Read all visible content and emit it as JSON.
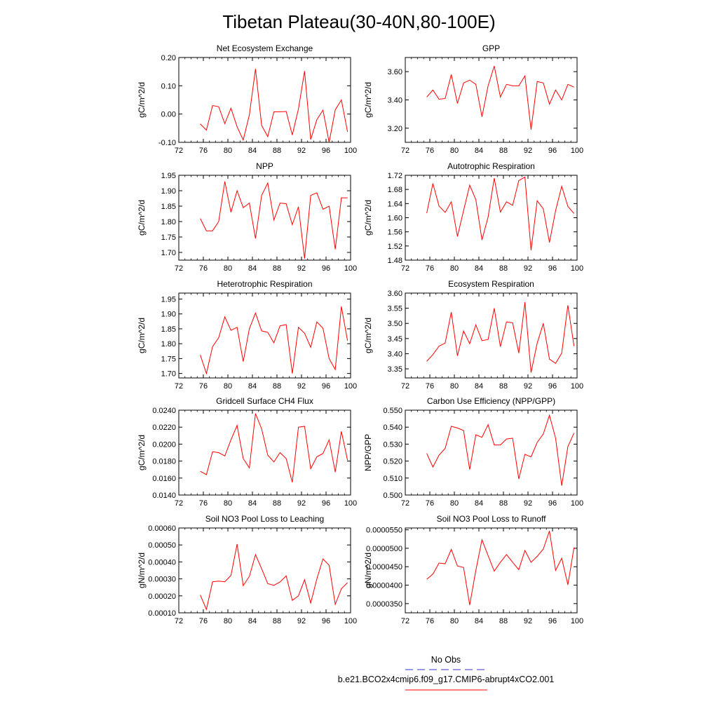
{
  "figure": {
    "title": "Tibetan Plateau(30-40N,80-100E)"
  },
  "legend": {
    "items": [
      {
        "label": "No Obs",
        "color": "#3333cc",
        "style": "dashed"
      },
      {
        "label": "b.e21.BCO2x4cmip6.f09_g17.CMIP6-abrupt4xCO2.001",
        "color": "#ff0000",
        "style": "solid"
      }
    ]
  },
  "colors": {
    "series": "#ff0000",
    "frame": "#000000"
  },
  "chart_data": [
    {
      "type": "line",
      "title": "Net Ecosystem Exchange",
      "ylabel": "gC/m^2/d",
      "xlim": [
        72,
        100
      ],
      "ylim": [
        -0.1,
        0.2
      ],
      "xticks": [
        72,
        76,
        80,
        84,
        88,
        92,
        96,
        100
      ],
      "xtick_labels": [
        "72",
        "76",
        "80",
        "84",
        "88",
        "92",
        "96",
        "100"
      ],
      "yticks": [
        -0.1,
        0.0,
        0.1,
        0.2
      ],
      "ytick_labels": [
        "-0.10",
        "0.00",
        "0.10",
        "0.20"
      ],
      "x": [
        75.5,
        76.5,
        77.5,
        78.5,
        79.5,
        80.5,
        81.5,
        82.5,
        83.5,
        84.5,
        85.5,
        86.5,
        87.5,
        88.5,
        89.5,
        90.5,
        91.5,
        92.5,
        93.5,
        94.5,
        95.5,
        96.5,
        97.5,
        98.5,
        99.5
      ],
      "series": [
        {
          "values": [
            -0.035,
            -0.057,
            0.03,
            0.026,
            -0.034,
            0.021,
            -0.045,
            -0.092,
            -0.003,
            0.16,
            -0.04,
            -0.08,
            0.008,
            0.008,
            0.009,
            -0.074,
            0.018,
            0.152,
            -0.09,
            -0.02,
            0.014,
            -0.1,
            0.015,
            0.05,
            -0.063
          ]
        }
      ]
    },
    {
      "type": "line",
      "title": "GPP",
      "ylabel": "gC/m^2/d",
      "xlim": [
        72,
        100
      ],
      "ylim": [
        3.1,
        3.7
      ],
      "xticks": [
        72,
        76,
        80,
        84,
        88,
        92,
        96,
        100
      ],
      "xtick_labels": [
        "72",
        "76",
        "80",
        "84",
        "88",
        "92",
        "96",
        "100"
      ],
      "yticks": [
        3.2,
        3.4,
        3.6
      ],
      "ytick_labels": [
        "3.20",
        "3.40",
        "3.60"
      ],
      "x": [
        75.5,
        76.5,
        77.5,
        78.5,
        79.5,
        80.5,
        81.5,
        82.5,
        83.5,
        84.5,
        85.5,
        86.5,
        87.5,
        88.5,
        89.5,
        90.5,
        91.5,
        92.5,
        93.5,
        94.5,
        95.5,
        96.5,
        97.5,
        98.5,
        99.5
      ],
      "series": [
        {
          "values": [
            3.42,
            3.47,
            3.405,
            3.41,
            3.58,
            3.375,
            3.52,
            3.54,
            3.51,
            3.28,
            3.5,
            3.64,
            3.42,
            3.51,
            3.5,
            3.5,
            3.57,
            3.19,
            3.53,
            3.52,
            3.37,
            3.47,
            3.4,
            3.51,
            3.49
          ]
        }
      ]
    },
    {
      "type": "line",
      "title": "NPP",
      "ylabel": "gC/m^2/d",
      "xlim": [
        72,
        100
      ],
      "ylim": [
        1.675,
        1.95
      ],
      "xticks": [
        72,
        76,
        80,
        84,
        88,
        92,
        96,
        100
      ],
      "xtick_labels": [
        "72",
        "76",
        "80",
        "84",
        "88",
        "92",
        "96",
        "100"
      ],
      "yticks": [
        1.7,
        1.75,
        1.8,
        1.85,
        1.9,
        1.95
      ],
      "ytick_labels": [
        "1.70",
        "1.75",
        "1.80",
        "1.85",
        "1.90",
        "1.95"
      ],
      "x": [
        75.5,
        76.5,
        77.5,
        78.5,
        79.5,
        80.5,
        81.5,
        82.5,
        83.5,
        84.5,
        85.5,
        86.5,
        87.5,
        88.5,
        89.5,
        90.5,
        91.5,
        92.5,
        93.5,
        94.5,
        95.5,
        96.5,
        97.5,
        98.5,
        99.5
      ],
      "series": [
        {
          "values": [
            1.81,
            1.77,
            1.77,
            1.8,
            1.93,
            1.83,
            1.9,
            1.845,
            1.86,
            1.745,
            1.885,
            1.925,
            1.805,
            1.86,
            1.858,
            1.79,
            1.848,
            1.68,
            1.885,
            1.893,
            1.84,
            1.85,
            1.71,
            1.877,
            1.877
          ]
        }
      ]
    },
    {
      "type": "line",
      "title": "Autotrophic Respiration",
      "ylabel": "gC/m^2/d",
      "xlim": [
        72,
        100
      ],
      "ylim": [
        1.48,
        1.72
      ],
      "xticks": [
        72,
        76,
        80,
        84,
        88,
        92,
        96,
        100
      ],
      "xtick_labels": [
        "72",
        "76",
        "80",
        "84",
        "88",
        "92",
        "96",
        "100"
      ],
      "yticks": [
        1.48,
        1.52,
        1.56,
        1.6,
        1.64,
        1.68,
        1.72
      ],
      "ytick_labels": [
        "1.48",
        "1.52",
        "1.56",
        "1.60",
        "1.64",
        "1.68",
        "1.72"
      ],
      "x": [
        75.5,
        76.5,
        77.5,
        78.5,
        79.5,
        80.5,
        81.5,
        82.5,
        83.5,
        84.5,
        85.5,
        86.5,
        87.5,
        88.5,
        89.5,
        90.5,
        91.5,
        92.5,
        93.5,
        94.5,
        95.5,
        96.5,
        97.5,
        98.5,
        99.5
      ],
      "series": [
        {
          "values": [
            1.613,
            1.697,
            1.633,
            1.615,
            1.645,
            1.547,
            1.62,
            1.692,
            1.651,
            1.537,
            1.602,
            1.712,
            1.616,
            1.645,
            1.635,
            1.705,
            1.715,
            1.508,
            1.648,
            1.625,
            1.53,
            1.62,
            1.689,
            1.632,
            1.612
          ]
        }
      ]
    },
    {
      "type": "line",
      "title": "Heterotrophic Respiration",
      "ylabel": "gC/m^2/d",
      "xlim": [
        72,
        100
      ],
      "ylim": [
        1.685,
        1.97
      ],
      "xticks": [
        72,
        76,
        80,
        84,
        88,
        92,
        96,
        100
      ],
      "xtick_labels": [
        "72",
        "76",
        "80",
        "84",
        "88",
        "92",
        "96",
        "100"
      ],
      "yticks": [
        1.7,
        1.75,
        1.8,
        1.85,
        1.9,
        1.95
      ],
      "ytick_labels": [
        "1.70",
        "1.75",
        "1.80",
        "1.85",
        "1.90",
        "1.95"
      ],
      "x": [
        75.5,
        76.5,
        77.5,
        78.5,
        79.5,
        80.5,
        81.5,
        82.5,
        83.5,
        84.5,
        85.5,
        86.5,
        87.5,
        88.5,
        89.5,
        90.5,
        91.5,
        92.5,
        93.5,
        94.5,
        95.5,
        96.5,
        97.5,
        98.5,
        99.5
      ],
      "series": [
        {
          "values": [
            1.762,
            1.7,
            1.79,
            1.82,
            1.89,
            1.845,
            1.855,
            1.74,
            1.85,
            1.903,
            1.843,
            1.838,
            1.803,
            1.86,
            1.864,
            1.7,
            1.855,
            1.835,
            1.788,
            1.873,
            1.852,
            1.75,
            1.713,
            1.925,
            1.81
          ]
        }
      ]
    },
    {
      "type": "line",
      "title": "Ecosystem Respiration",
      "ylabel": "gC/m^2/d",
      "xlim": [
        72,
        100
      ],
      "ylim": [
        3.32,
        3.6
      ],
      "xticks": [
        72,
        76,
        80,
        84,
        88,
        92,
        96,
        100
      ],
      "xtick_labels": [
        "72",
        "76",
        "80",
        "84",
        "88",
        "92",
        "96",
        "100"
      ],
      "yticks": [
        3.35,
        3.4,
        3.45,
        3.5,
        3.55,
        3.6
      ],
      "ytick_labels": [
        "3.35",
        "3.40",
        "3.45",
        "3.50",
        "3.55",
        "3.60"
      ],
      "x": [
        75.5,
        76.5,
        77.5,
        78.5,
        79.5,
        80.5,
        81.5,
        82.5,
        83.5,
        84.5,
        85.5,
        86.5,
        87.5,
        88.5,
        89.5,
        90.5,
        91.5,
        92.5,
        93.5,
        94.5,
        95.5,
        96.5,
        97.5,
        98.5,
        99.5
      ],
      "series": [
        {
          "values": [
            3.375,
            3.397,
            3.425,
            3.435,
            3.537,
            3.393,
            3.475,
            3.433,
            3.495,
            3.443,
            3.447,
            3.55,
            3.423,
            3.505,
            3.502,
            3.402,
            3.57,
            3.338,
            3.435,
            3.5,
            3.382,
            3.368,
            3.402,
            3.56,
            3.425
          ]
        }
      ]
    },
    {
      "type": "line",
      "title": "Gridcell Surface CH4 Flux",
      "ylabel": "gC/m^2/d",
      "xlim": [
        72,
        100
      ],
      "ylim": [
        0.014,
        0.024
      ],
      "xticks": [
        72,
        76,
        80,
        84,
        88,
        92,
        96,
        100
      ],
      "xtick_labels": [
        "72",
        "76",
        "80",
        "84",
        "88",
        "92",
        "96",
        "100"
      ],
      "yticks": [
        0.014,
        0.016,
        0.018,
        0.02,
        0.022,
        0.024
      ],
      "ytick_labels": [
        "0.0140",
        "0.0160",
        "0.0180",
        "0.0200",
        "0.0220",
        "0.0240"
      ],
      "x": [
        75.5,
        76.5,
        77.5,
        78.5,
        79.5,
        80.5,
        81.5,
        82.5,
        83.5,
        84.5,
        85.5,
        86.5,
        87.5,
        88.5,
        89.5,
        90.5,
        91.5,
        92.5,
        93.5,
        94.5,
        95.5,
        96.5,
        97.5,
        98.5,
        99.5
      ],
      "series": [
        {
          "values": [
            0.0168,
            0.0164,
            0.0191,
            0.019,
            0.0186,
            0.0205,
            0.0222,
            0.0183,
            0.0172,
            0.0236,
            0.0218,
            0.0187,
            0.0179,
            0.019,
            0.0183,
            0.0155,
            0.022,
            0.0221,
            0.0171,
            0.0185,
            0.0189,
            0.0205,
            0.0167,
            0.0215,
            0.0181
          ]
        }
      ]
    },
    {
      "type": "line",
      "title": "Carbon Use Efficiency (NPP/GPP)",
      "ylabel": "NPP/GPP",
      "xlim": [
        72,
        100
      ],
      "ylim": [
        0.5,
        0.55
      ],
      "xticks": [
        72,
        76,
        80,
        84,
        88,
        92,
        96,
        100
      ],
      "xtick_labels": [
        "72",
        "76",
        "80",
        "84",
        "88",
        "92",
        "96",
        "100"
      ],
      "yticks": [
        0.5,
        0.51,
        0.52,
        0.53,
        0.54,
        0.55
      ],
      "ytick_labels": [
        "0.500",
        "0.510",
        "0.520",
        "0.530",
        "0.540",
        "0.550"
      ],
      "x": [
        75.5,
        76.5,
        77.5,
        78.5,
        79.5,
        80.5,
        81.5,
        82.5,
        83.5,
        84.5,
        85.5,
        86.5,
        87.5,
        88.5,
        89.5,
        90.5,
        91.5,
        92.5,
        93.5,
        94.5,
        95.5,
        96.5,
        97.5,
        98.5,
        99.5
      ],
      "series": [
        {
          "values": [
            0.5245,
            0.5165,
            0.5235,
            0.5275,
            0.5405,
            0.5395,
            0.538,
            0.515,
            0.5355,
            0.534,
            0.5415,
            0.5295,
            0.5295,
            0.533,
            0.5335,
            0.5095,
            0.524,
            0.5225,
            0.531,
            0.536,
            0.547,
            0.5335,
            0.5055,
            0.5285,
            0.5365
          ]
        }
      ]
    },
    {
      "type": "line",
      "title": "Soil NO3 Pool Loss to Leaching",
      "ylabel": "gN/m^2/d",
      "xlim": [
        72,
        100
      ],
      "ylim": [
        0.0001,
        0.0006
      ],
      "xticks": [
        72,
        76,
        80,
        84,
        88,
        92,
        96,
        100
      ],
      "xtick_labels": [
        "72",
        "76",
        "80",
        "84",
        "88",
        "92",
        "96",
        "100"
      ],
      "yticks": [
        0.0001,
        0.0002,
        0.0003,
        0.0004,
        0.0005,
        0.0006
      ],
      "ytick_labels": [
        "0.00010",
        "0.00020",
        "0.00030",
        "0.00040",
        "0.00050",
        "0.00060"
      ],
      "x": [
        75.5,
        76.5,
        77.5,
        78.5,
        79.5,
        80.5,
        81.5,
        82.5,
        83.5,
        84.5,
        85.5,
        86.5,
        87.5,
        88.5,
        89.5,
        90.5,
        91.5,
        92.5,
        93.5,
        94.5,
        95.5,
        96.5,
        97.5,
        98.5,
        99.5
      ],
      "series": [
        {
          "values": [
            0.000205,
            0.00012,
            0.000283,
            0.000287,
            0.000283,
            0.00032,
            0.000505,
            0.00026,
            0.000315,
            0.000443,
            0.00036,
            0.000272,
            0.000262,
            0.000282,
            0.000318,
            0.000173,
            0.0002,
            0.000295,
            0.000158,
            0.0003,
            0.000418,
            0.00038,
            0.00015,
            0.000242,
            0.000278
          ]
        }
      ]
    },
    {
      "type": "line",
      "title": "Soil NO3 Pool Loss to Runoff",
      "ylabel": "gN/m^2/d",
      "xlim": [
        72,
        100
      ],
      "ylim": [
        3.25e-05,
        5.55e-05
      ],
      "xticks": [
        72,
        76,
        80,
        84,
        88,
        92,
        96,
        100
      ],
      "xtick_labels": [
        "72",
        "76",
        "80",
        "84",
        "88",
        "92",
        "96",
        "100"
      ],
      "yticks": [
        3.5e-05,
        4e-05,
        4.5e-05,
        5e-05,
        5.5e-05
      ],
      "ytick_labels": [
        "0.0000350",
        "0.0000400",
        "0.0000450",
        "0.0000500",
        "0.0000550"
      ],
      "x": [
        75.5,
        76.5,
        77.5,
        78.5,
        79.5,
        80.5,
        81.5,
        82.5,
        83.5,
        84.5,
        85.5,
        86.5,
        87.5,
        88.5,
        89.5,
        90.5,
        91.5,
        92.5,
        93.5,
        94.5,
        95.5,
        96.5,
        97.5,
        98.5,
        99.5
      ],
      "series": [
        {
          "values": [
            4.16e-05,
            4.3e-05,
            4.6e-05,
            4.58e-05,
            4.97e-05,
            4.52e-05,
            4.48e-05,
            3.46e-05,
            4.4e-05,
            5.23e-05,
            4.8e-05,
            4.38e-05,
            4.62e-05,
            4.83e-05,
            4.62e-05,
            4.42e-05,
            4.94e-05,
            4.62e-05,
            4.78e-05,
            4.98e-05,
            5.47e-05,
            4.4e-05,
            4.73e-05,
            4.01e-05,
            5.02e-05
          ]
        }
      ]
    }
  ]
}
